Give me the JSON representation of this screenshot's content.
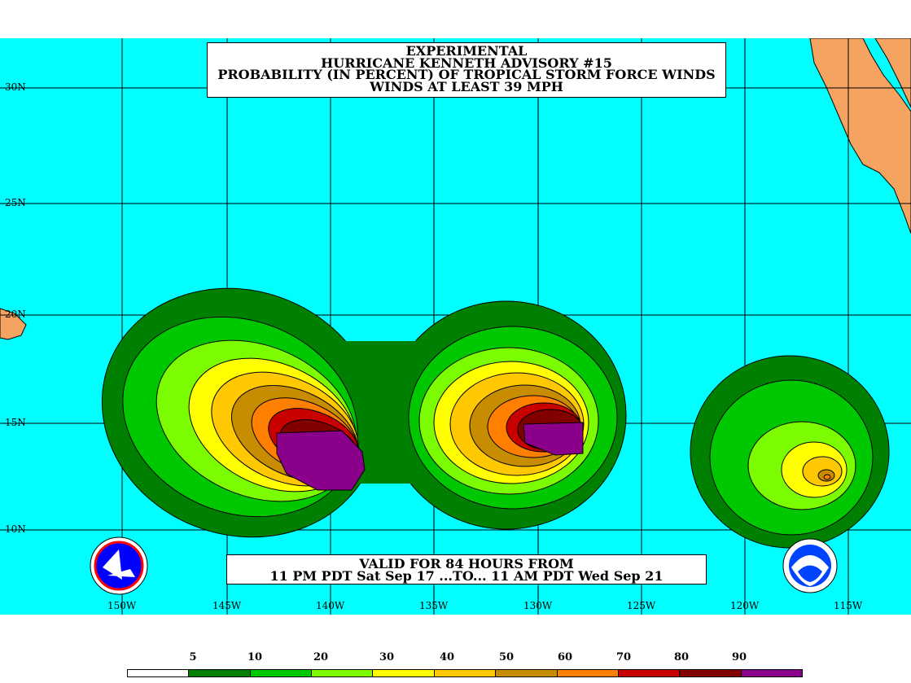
{
  "title": {
    "line1": "EXPERIMENTAL",
    "line2": "HURRICANE KENNETH ADVISORY #15",
    "line3": "PROBABILITY (IN PERCENT) OF TROPICAL STORM FORCE WINDS",
    "line4": "WINDS AT LEAST 39 MPH"
  },
  "valid": {
    "line1": "VALID FOR 84 HOURS FROM",
    "line2": "11 PM PDT Sat Sep 17 ...TO... 11 AM PDT Wed Sep 21"
  },
  "lat_labels": [
    "30N",
    "25N",
    "20N",
    "15N",
    "10N"
  ],
  "lon_labels": [
    "150W",
    "145W",
    "140W",
    "135W",
    "130W",
    "125W",
    "120W",
    "115W"
  ],
  "legend": {
    "labels": [
      "5",
      "10",
      "20",
      "30",
      "40",
      "50",
      "60",
      "70",
      "80",
      "90"
    ],
    "colors": [
      "#ffffff",
      "#008000",
      "#00c800",
      "#7cfc00",
      "#ffff00",
      "#ffc800",
      "#c88c00",
      "#ff8000",
      "#c80000",
      "#800000",
      "#8b008b"
    ]
  },
  "colors": {
    "ocean": "#00ffff",
    "land": "#f4a460"
  },
  "logos": [
    "nws-logo",
    "noaa-logo"
  ]
}
